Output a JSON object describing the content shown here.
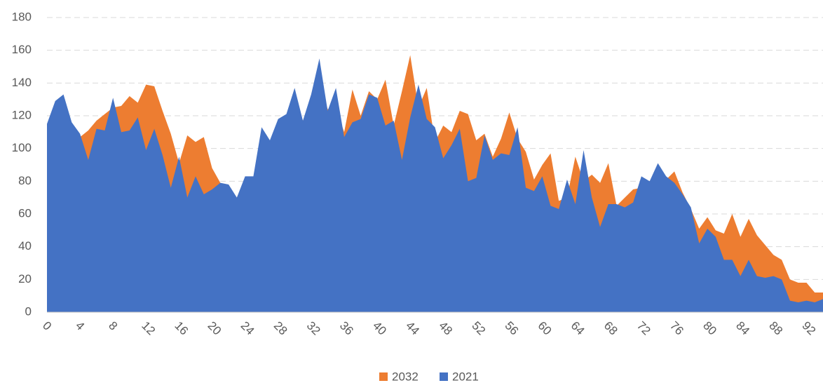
{
  "chart_data": {
    "type": "area",
    "categories": [
      0,
      null,
      null,
      null,
      4,
      null,
      null,
      null,
      8,
      null,
      null,
      null,
      12,
      null,
      null,
      null,
      16,
      null,
      null,
      null,
      20,
      null,
      null,
      null,
      24,
      null,
      null,
      null,
      28,
      null,
      null,
      null,
      32,
      null,
      null,
      null,
      36,
      null,
      null,
      null,
      40,
      null,
      null,
      null,
      44,
      null,
      null,
      null,
      48,
      null,
      null,
      null,
      52,
      null,
      null,
      null,
      56,
      null,
      null,
      null,
      60,
      null,
      null,
      null,
      64,
      null,
      null,
      null,
      68,
      null,
      null,
      null,
      72,
      null,
      null,
      null,
      76,
      null,
      null,
      null,
      80,
      null,
      null,
      null,
      84,
      null,
      null,
      null,
      88,
      null,
      null,
      null,
      92,
      null,
      null
    ],
    "series": [
      {
        "name": "2032",
        "color": "#ed7d31",
        "values": [
          90,
          100,
          105,
          106,
          107,
          111,
          117,
          121,
          125,
          126,
          132,
          128,
          139,
          138,
          123,
          109,
          91,
          108,
          104,
          107,
          88,
          79,
          76,
          70,
          80,
          82,
          100,
          104,
          112,
          119,
          125,
          117,
          125,
          142,
          124,
          125,
          110,
          136,
          120,
          135,
          130,
          142,
          114,
          135,
          157,
          125,
          137,
          104,
          114,
          110,
          123,
          121,
          105,
          109,
          95,
          106,
          122,
          106,
          98,
          81,
          90,
          97,
          68,
          70,
          95,
          80,
          84,
          79,
          91,
          65,
          70,
          75,
          76,
          80,
          88,
          81,
          86,
          73,
          63,
          51,
          58,
          50,
          48,
          60,
          46,
          57,
          47,
          41,
          35,
          32,
          20,
          18,
          18,
          12,
          12
        ]
      },
      {
        "name": "2021",
        "color": "#4472c4",
        "values": [
          115,
          129,
          133,
          116,
          109,
          93,
          112,
          111,
          131,
          110,
          111,
          119,
          99,
          112,
          96,
          76,
          95,
          70,
          83,
          72,
          75,
          79,
          78,
          70,
          83,
          83,
          113,
          105,
          118,
          121,
          137,
          117,
          133,
          155,
          123,
          137,
          107,
          116,
          118,
          133,
          131,
          114,
          117,
          93,
          119,
          139,
          118,
          113,
          94,
          102,
          112,
          80,
          82,
          108,
          93,
          97,
          96,
          113,
          76,
          74,
          83,
          65,
          63,
          81,
          66,
          99,
          70,
          52,
          66,
          66,
          64,
          67,
          83,
          80,
          91,
          83,
          79,
          72,
          64,
          42,
          51,
          46,
          32,
          32,
          22,
          32,
          22,
          21,
          22,
          20,
          7,
          6,
          7,
          6,
          8
        ]
      }
    ],
    "ylim": [
      0,
      180
    ],
    "yticks": [
      0,
      20,
      40,
      60,
      80,
      100,
      120,
      140,
      160,
      180
    ],
    "grid": true,
    "legend": "bottom"
  }
}
